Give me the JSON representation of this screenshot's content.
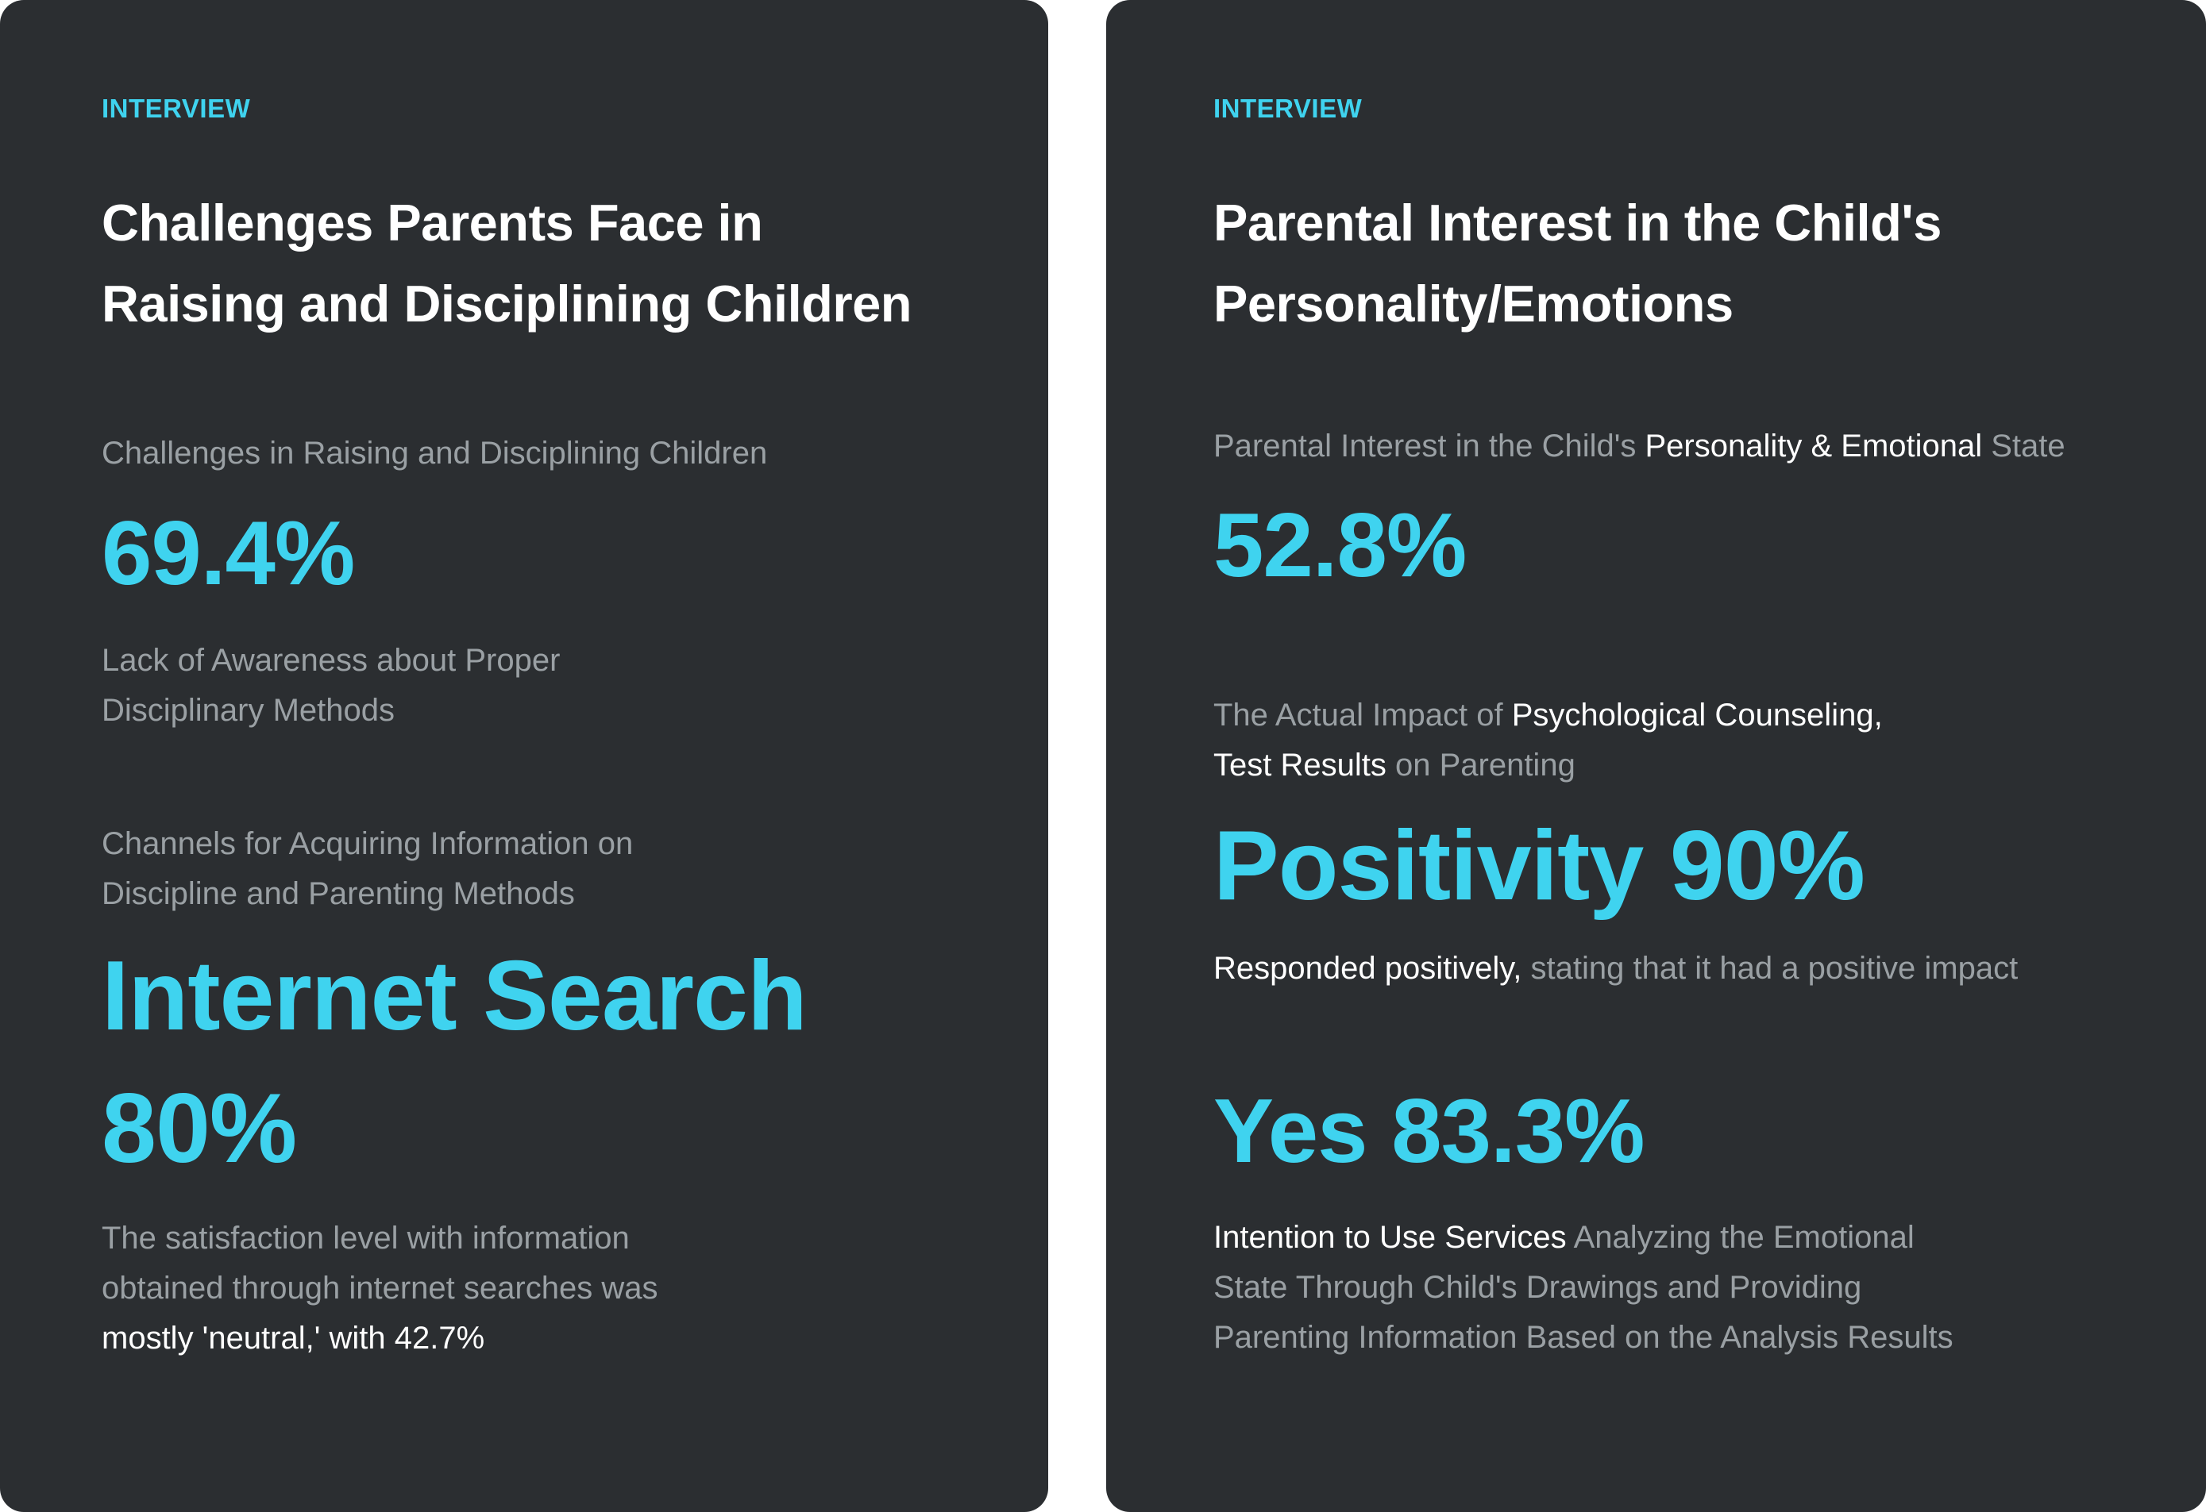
{
  "left_card": {
    "tag": "INTERVIEW",
    "title_line1": "Challenges Parents Face in",
    "title_line2": "Raising and Disciplining Children",
    "stat1_label": "Challenges in Raising and Disciplining Children",
    "stat1_value": "69.4%",
    "stat1_desc_line1": "Lack of Awareness about Proper",
    "stat1_desc_line2": "Disciplinary Methods",
    "stat2_label_line1": "Channels for Acquiring Information on",
    "stat2_label_line2": "Discipline and Parenting Methods",
    "stat2_value_line1": "Internet Search",
    "stat2_value_line2": "80%",
    "stat2_desc_line1": "The satisfaction level with information",
    "stat2_desc_line2": "obtained through internet searches was",
    "stat2_desc_line3": "mostly 'neutral,' with 42.7%"
  },
  "right_card": {
    "tag": "INTERVIEW",
    "title_line1": "Parental Interest in the Child's",
    "title_line2": "Personality/Emotions",
    "stat1_label_pre": "Parental Interest in the Child's ",
    "stat1_label_highlight": "Personality & Emotional",
    "stat1_label_post": " State",
    "stat1_value": "52.8%",
    "stat2_label_pre": "The Actual Impact of ",
    "stat2_label_highlight1": "Psychological Counseling,",
    "stat2_label_highlight2": "Test Results",
    "stat2_label_post": " on Parenting",
    "stat2_value": "Positivity 90%",
    "stat2_desc_highlight": "Responded positively,",
    "stat2_desc_rest": " stating that it had a positive impact",
    "stat3_value": "Yes 83.3%",
    "stat3_desc_highlight": "Intention to Use Services",
    "stat3_desc_line1_rest": " Analyzing the Emotional",
    "stat3_desc_line2": "State Through Child's Drawings and Providing",
    "stat3_desc_line3": "Parenting Information Based on the Analysis Results"
  }
}
